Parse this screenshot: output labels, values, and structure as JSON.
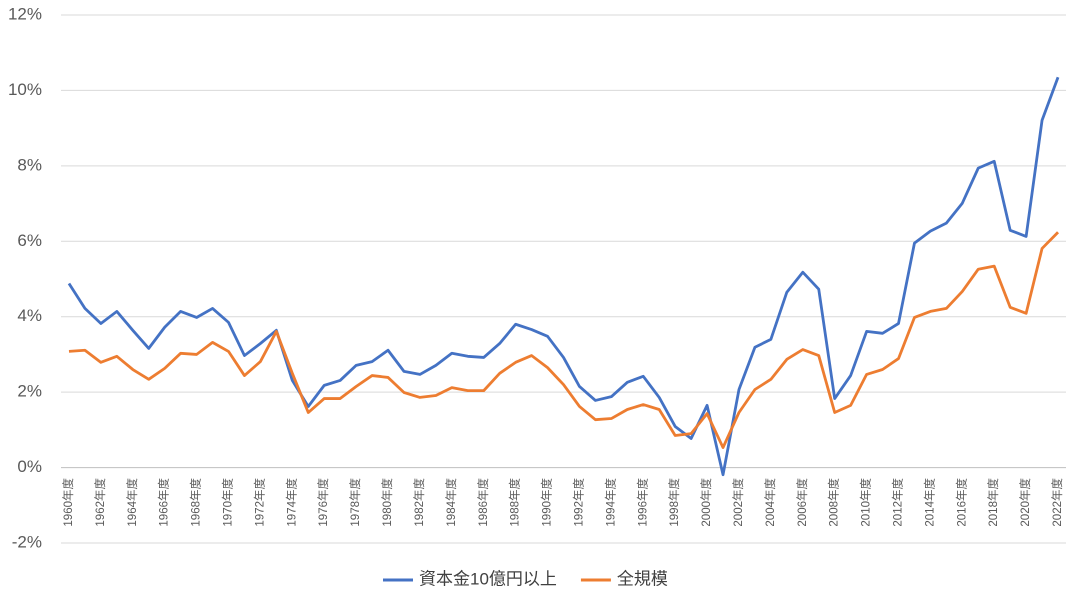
{
  "chart_data": {
    "type": "line",
    "categories": [
      "1960年度",
      null,
      "1962年度",
      null,
      "1964年度",
      null,
      "1966年度",
      null,
      "1968年度",
      null,
      "1970年度",
      null,
      "1972年度",
      null,
      "1974年度",
      null,
      "1976年度",
      null,
      "1978年度",
      null,
      "1980年度",
      null,
      "1982年度",
      null,
      "1984年度",
      null,
      "1986年度",
      null,
      "1988年度",
      null,
      "1990年度",
      null,
      "1992年度",
      null,
      "1994年度",
      null,
      "1996年度",
      null,
      "1998年度",
      null,
      "2000年度",
      null,
      "2002年度",
      null,
      "2004年度",
      null,
      "2006年度",
      null,
      "2008年度",
      null,
      "2010年度",
      null,
      "2012年度",
      null,
      "2014年度",
      null,
      "2016年度",
      null,
      "2018年度",
      null,
      "2020年度",
      null,
      "2022年度"
    ],
    "series": [
      {
        "name": "資本金10億円以上",
        "color": "#4472c4",
        "values": [
          4.88,
          4.22,
          3.82,
          4.14,
          3.64,
          3.16,
          3.72,
          4.14,
          3.98,
          4.22,
          3.85,
          2.97,
          3.29,
          3.64,
          2.31,
          1.62,
          2.18,
          2.31,
          2.71,
          2.81,
          3.11,
          2.55,
          2.47,
          2.71,
          3.03,
          2.95,
          2.92,
          3.29,
          3.8,
          3.66,
          3.48,
          2.92,
          2.15,
          1.78,
          1.88,
          2.26,
          2.42,
          1.86,
          1.09,
          0.77,
          1.65,
          -0.19,
          2.07,
          3.19,
          3.4,
          4.65,
          5.18,
          4.73,
          1.83,
          2.44,
          3.61,
          3.56,
          3.82,
          5.95,
          6.27,
          6.48,
          7.01,
          7.94,
          8.12,
          6.29,
          6.13,
          9.21,
          10.35
        ]
      },
      {
        "name": "全規模",
        "color": "#ed7d31",
        "values": [
          3.08,
          3.11,
          2.79,
          2.95,
          2.6,
          2.34,
          2.63,
          3.03,
          3.0,
          3.32,
          3.08,
          2.44,
          2.81,
          3.61,
          2.5,
          1.46,
          1.83,
          1.83,
          2.15,
          2.44,
          2.39,
          1.99,
          1.86,
          1.91,
          2.12,
          2.04,
          2.04,
          2.5,
          2.79,
          2.97,
          2.65,
          2.2,
          1.62,
          1.27,
          1.3,
          1.54,
          1.67,
          1.54,
          0.85,
          0.9,
          1.43,
          0.53,
          1.46,
          2.07,
          2.34,
          2.87,
          3.13,
          2.97,
          1.46,
          1.65,
          2.47,
          2.6,
          2.89,
          3.98,
          4.14,
          4.22,
          4.67,
          5.26,
          5.34,
          4.25,
          4.09,
          5.81,
          6.24
        ]
      }
    ],
    "ylim": [
      -2,
      12
    ],
    "yticks": [
      {
        "value": -2,
        "label": "-2%"
      },
      {
        "value": 0,
        "label": "0%"
      },
      {
        "value": 2,
        "label": "2%"
      },
      {
        "value": 4,
        "label": "4%"
      },
      {
        "value": 6,
        "label": "6%"
      },
      {
        "value": 8,
        "label": "8%"
      },
      {
        "value": 10,
        "label": "10%"
      },
      {
        "value": 12,
        "label": "12%"
      }
    ],
    "grid": true,
    "legend": "bottom"
  }
}
